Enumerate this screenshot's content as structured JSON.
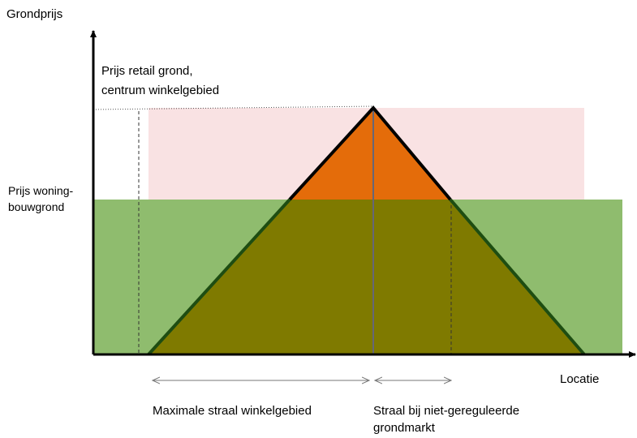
{
  "diagram": {
    "y_axis_label": "Grondprijs",
    "x_axis_label": "Locatie",
    "retail_price_label": [
      "Prijs retail grond,",
      "centrum winkelgebied"
    ],
    "housing_price_label": [
      "Prijs woning-",
      "bouwgrond"
    ],
    "max_radius_label": "Maximale straal winkelgebied",
    "unregulated_radius_label": [
      "Straal bij niet-gereguleerde",
      "grondmarkt"
    ]
  }
}
